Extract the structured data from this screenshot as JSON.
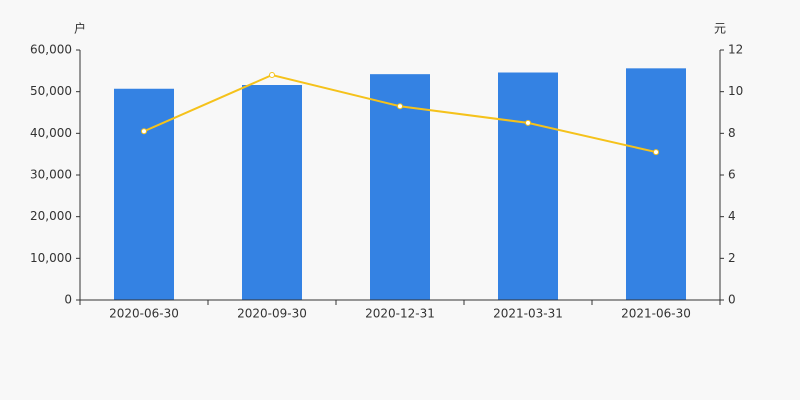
{
  "chart_data": {
    "type": "bar-line",
    "y_label": "户",
    "y2_label": "元",
    "categories": [
      "2020-06-30",
      "2020-09-30",
      "2020-12-31",
      "2021-03-31",
      "2021-06-30"
    ],
    "series": [
      {
        "type": "bar",
        "color": "#3482e3",
        "values": [
          50700,
          51600,
          54200,
          54600,
          55600
        ]
      },
      {
        "type": "line",
        "axis": "y2",
        "color": "#f5c21b",
        "values": [
          8.1,
          10.8,
          9.3,
          8.5,
          7.1
        ]
      }
    ],
    "ylim": [
      0,
      60000
    ],
    "yticks": [
      0,
      {
        "value": 10000,
        "label": "10,000"
      },
      {
        "value": 20000,
        "label": "20,000"
      },
      {
        "value": 30000,
        "label": "30,000"
      },
      {
        "value": 40000,
        "label": "40,000"
      },
      {
        "value": 50000,
        "label": "50,000"
      },
      {
        "value": 60000,
        "label": "60,000"
      }
    ],
    "y2lim": [
      0,
      12
    ],
    "y2ticks": [
      0,
      2,
      4,
      6,
      8,
      10,
      12
    ]
  }
}
